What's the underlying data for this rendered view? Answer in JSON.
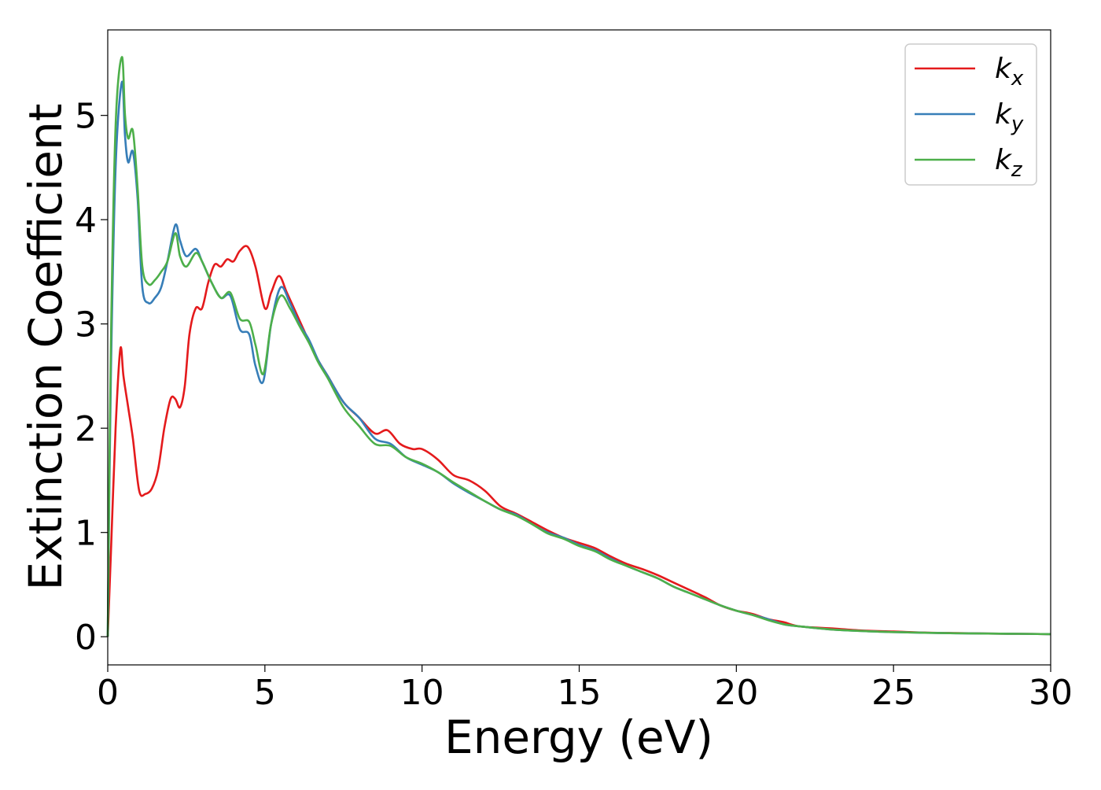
{
  "chart_data": {
    "type": "line",
    "title": "",
    "xlabel": "Energy (eV)",
    "ylabel": "Extinction Coefficient",
    "xlim": [
      0,
      30
    ],
    "ylim": [
      -0.27,
      5.82
    ],
    "xticks": [
      "0",
      "5",
      "10",
      "15",
      "20",
      "25",
      "30"
    ],
    "yticks": [
      "0",
      "1",
      "2",
      "3",
      "4",
      "5"
    ],
    "grid": false,
    "legend_position": "top-right",
    "series": [
      {
        "name": "kx",
        "label_base": "k",
        "label_sub": "x",
        "color": "#e41a1c",
        "x": [
          0,
          0.1,
          0.25,
          0.4,
          0.5,
          0.65,
          0.8,
          1.0,
          1.2,
          1.4,
          1.6,
          1.8,
          2.0,
          2.15,
          2.3,
          2.45,
          2.6,
          2.8,
          3.0,
          3.2,
          3.4,
          3.6,
          3.8,
          4.0,
          4.2,
          4.45,
          4.7,
          5.0,
          5.2,
          5.45,
          5.7,
          6.0,
          6.3,
          6.6,
          7.0,
          7.5,
          8.0,
          8.5,
          8.9,
          9.3,
          9.7,
          10.0,
          10.5,
          11.0,
          11.5,
          12.0,
          12.5,
          13.0,
          13.5,
          14.0,
          14.5,
          15.0,
          15.5,
          16.0,
          16.5,
          17.0,
          17.5,
          18.0,
          18.5,
          19.0,
          19.5,
          20.0,
          20.5,
          21.0,
          21.5,
          22.0,
          23.0,
          24.0,
          25.0,
          26.0,
          27.0,
          28.0,
          29.0,
          30.0
        ],
        "y": [
          0.0,
          0.8,
          2.0,
          2.76,
          2.5,
          2.2,
          1.9,
          1.4,
          1.37,
          1.42,
          1.6,
          2.0,
          2.28,
          2.28,
          2.2,
          2.4,
          2.9,
          3.15,
          3.15,
          3.4,
          3.57,
          3.55,
          3.62,
          3.6,
          3.7,
          3.74,
          3.55,
          3.15,
          3.3,
          3.46,
          3.3,
          3.1,
          2.9,
          2.7,
          2.5,
          2.25,
          2.1,
          1.95,
          1.98,
          1.85,
          1.8,
          1.8,
          1.7,
          1.55,
          1.5,
          1.4,
          1.25,
          1.18,
          1.1,
          1.02,
          0.95,
          0.9,
          0.85,
          0.77,
          0.7,
          0.65,
          0.59,
          0.52,
          0.45,
          0.38,
          0.3,
          0.25,
          0.22,
          0.17,
          0.14,
          0.1,
          0.08,
          0.06,
          0.05,
          0.04,
          0.035,
          0.03,
          0.028,
          0.025
        ]
      },
      {
        "name": "ky",
        "label_base": "k",
        "label_sub": "y",
        "color": "#377eb8",
        "x": [
          0,
          0.1,
          0.25,
          0.45,
          0.55,
          0.65,
          0.8,
          0.95,
          1.1,
          1.3,
          1.5,
          1.7,
          1.9,
          2.15,
          2.3,
          2.5,
          2.8,
          3.0,
          3.3,
          3.6,
          3.9,
          4.2,
          4.5,
          4.7,
          4.95,
          5.2,
          5.5,
          5.8,
          6.1,
          6.4,
          6.7,
          7.0,
          7.5,
          8.0,
          8.5,
          9.0,
          9.5,
          10.0,
          10.5,
          11.0,
          11.5,
          12.0,
          12.5,
          13.0,
          13.5,
          14.0,
          14.5,
          15.0,
          15.5,
          16.0,
          16.5,
          17.0,
          17.5,
          18.0,
          18.5,
          19.0,
          19.5,
          20.0,
          20.5,
          21.0,
          21.5,
          22.0,
          23.0,
          24.0,
          25.0,
          26.0,
          27.0,
          28.0,
          29.0,
          30.0
        ],
        "y": [
          0.0,
          2.5,
          4.5,
          5.32,
          4.8,
          4.55,
          4.65,
          4.2,
          3.35,
          3.2,
          3.25,
          3.35,
          3.6,
          3.95,
          3.8,
          3.65,
          3.72,
          3.6,
          3.4,
          3.25,
          3.27,
          2.95,
          2.9,
          2.6,
          2.45,
          3.0,
          3.35,
          3.2,
          3.0,
          2.85,
          2.65,
          2.5,
          2.25,
          2.1,
          1.9,
          1.85,
          1.72,
          1.65,
          1.58,
          1.47,
          1.38,
          1.3,
          1.22,
          1.17,
          1.08,
          1.0,
          0.95,
          0.88,
          0.83,
          0.75,
          0.68,
          0.62,
          0.56,
          0.48,
          0.42,
          0.36,
          0.3,
          0.25,
          0.21,
          0.17,
          0.12,
          0.1,
          0.07,
          0.055,
          0.045,
          0.038,
          0.033,
          0.03,
          0.028,
          0.025
        ]
      },
      {
        "name": "kz",
        "label_base": "k",
        "label_sub": "z",
        "color": "#4daf4a",
        "x": [
          0,
          0.1,
          0.25,
          0.45,
          0.55,
          0.65,
          0.8,
          0.95,
          1.1,
          1.3,
          1.5,
          1.7,
          1.9,
          2.15,
          2.3,
          2.5,
          2.8,
          3.0,
          3.3,
          3.6,
          3.9,
          4.2,
          4.5,
          4.7,
          4.95,
          5.2,
          5.5,
          5.8,
          6.1,
          6.4,
          6.7,
          7.0,
          7.5,
          8.0,
          8.5,
          9.0,
          9.5,
          10.0,
          10.5,
          11.0,
          11.5,
          12.0,
          12.5,
          13.0,
          13.5,
          14.0,
          14.5,
          15.0,
          15.5,
          16.0,
          16.5,
          17.0,
          17.5,
          18.0,
          18.5,
          19.0,
          19.5,
          20.0,
          20.5,
          21.0,
          21.5,
          22.0,
          23.0,
          24.0,
          25.0,
          26.0,
          27.0,
          28.0,
          29.0,
          30.0
        ],
        "y": [
          0.0,
          2.8,
          4.9,
          5.56,
          5.0,
          4.78,
          4.85,
          4.3,
          3.55,
          3.38,
          3.42,
          3.5,
          3.6,
          3.87,
          3.65,
          3.55,
          3.68,
          3.6,
          3.4,
          3.25,
          3.3,
          3.05,
          3.02,
          2.8,
          2.52,
          3.0,
          3.27,
          3.15,
          2.98,
          2.82,
          2.63,
          2.48,
          2.2,
          2.02,
          1.85,
          1.83,
          1.72,
          1.66,
          1.58,
          1.48,
          1.39,
          1.3,
          1.22,
          1.16,
          1.08,
          0.99,
          0.94,
          0.87,
          0.82,
          0.74,
          0.68,
          0.62,
          0.56,
          0.48,
          0.42,
          0.36,
          0.3,
          0.25,
          0.21,
          0.16,
          0.12,
          0.1,
          0.07,
          0.055,
          0.045,
          0.038,
          0.033,
          0.03,
          0.028,
          0.025
        ]
      }
    ]
  }
}
